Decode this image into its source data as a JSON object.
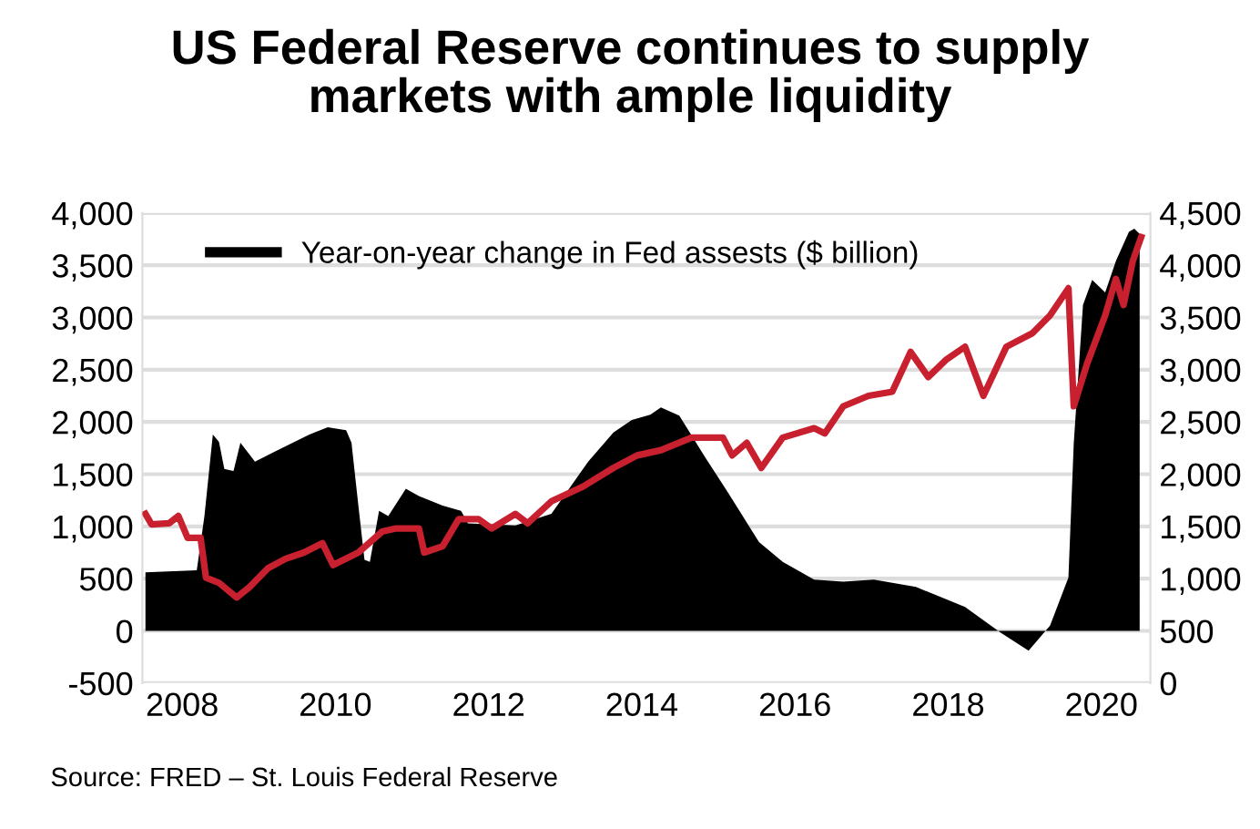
{
  "chart_data": {
    "type": "area",
    "title": "US Federal Reserve continues to supply\nmarkets with ample liquidity",
    "annotations": [
      "Source: FRED – St. Louis Federal Reserve"
    ],
    "xlim": [
      2007.48,
      2020.64
    ],
    "xticks": [
      2008,
      2010,
      2012,
      2014,
      2016,
      2018,
      2020
    ],
    "ylim": [
      -500,
      4000
    ],
    "yticks": [
      {
        "value": -500,
        "label": "-500"
      },
      {
        "value": 0,
        "label": "0"
      },
      {
        "value": 500,
        "label": "500"
      },
      {
        "value": 1000,
        "label": "1,000"
      },
      {
        "value": 1500,
        "label": "1,500"
      },
      {
        "value": 2000,
        "label": "2,000"
      },
      {
        "value": 2500,
        "label": "2,500"
      },
      {
        "value": 3000,
        "label": "3,000"
      },
      {
        "value": 3500,
        "label": "3,500"
      },
      {
        "value": 4000,
        "label": "4,000"
      }
    ],
    "y2lim": [
      0,
      4500
    ],
    "y2ticks": [
      0,
      500,
      {
        "value": 1000,
        "label": "1,000"
      },
      {
        "value": 1500,
        "label": "1,500"
      },
      {
        "value": 2000,
        "label": "2,000"
      },
      {
        "value": 2500,
        "label": "2,500"
      },
      {
        "value": 3000,
        "label": "3,000"
      },
      {
        "value": 3500,
        "label": "3,500"
      },
      {
        "value": 4000,
        "label": "4,000"
      },
      {
        "value": 4500,
        "label": "4,500"
      }
    ],
    "grid": "y",
    "legend": "top left",
    "series": [
      {
        "name": "Year-on-year change in Fed assests ($ billion)",
        "color": "#000000",
        "x": [
          2007.52,
          2008.19,
          2008.29,
          2008.4,
          2008.48,
          2008.55,
          2008.67,
          2008.76,
          2008.95,
          2009.19,
          2009.66,
          2009.9,
          2010.14,
          2010.21,
          2010.3,
          2010.38,
          2010.45,
          2010.57,
          2010.69,
          2010.92,
          2011.09,
          2011.4,
          2011.64,
          2011.73,
          2012.35,
          2012.82,
          2013.3,
          2013.63,
          2013.87,
          2014.11,
          2014.25,
          2014.49,
          2014.82,
          2015.13,
          2015.53,
          2015.84,
          2016.25,
          2016.63,
          2017.03,
          2017.58,
          2018.22,
          2018.69,
          2019.05,
          2019.33,
          2019.57,
          2019.64,
          2019.76,
          2019.88,
          2020.05,
          2020.19,
          2020.36,
          2020.43,
          2020.5
        ],
        "values": [
          560,
          580,
          1100,
          1880,
          1810,
          1550,
          1530,
          1800,
          1620,
          1710,
          1880,
          1950,
          1920,
          1800,
          1200,
          680,
          660,
          1150,
          1100,
          1360,
          1290,
          1200,
          1150,
          1030,
          1010,
          1120,
          1620,
          1900,
          2020,
          2070,
          2140,
          2060,
          1670,
          1320,
          850,
          660,
          490,
          470,
          490,
          420,
          230,
          -20,
          -190,
          50,
          510,
          1800,
          3120,
          3360,
          3240,
          3540,
          3820,
          3850,
          3800
        ]
      },
      {
        "type": "line",
        "axis": "y2",
        "color": "#c8202f",
        "x": [
          2007.52,
          2007.6,
          2007.83,
          2007.95,
          2008.07,
          2008.24,
          2008.31,
          2008.48,
          2008.71,
          2008.88,
          2009.12,
          2009.35,
          2009.59,
          2009.83,
          2009.97,
          2010.3,
          2010.61,
          2010.78,
          2011.09,
          2011.16,
          2011.4,
          2011.61,
          2011.87,
          2012.04,
          2012.35,
          2012.51,
          2012.82,
          2013.23,
          2013.63,
          2013.94,
          2014.25,
          2014.65,
          2015.06,
          2015.18,
          2015.37,
          2015.56,
          2015.84,
          2016.25,
          2016.39,
          2016.63,
          2016.96,
          2017.27,
          2017.51,
          2017.74,
          2017.98,
          2018.22,
          2018.46,
          2018.76,
          2019.1,
          2019.33,
          2019.57,
          2019.64,
          2019.81,
          2020.05,
          2020.19,
          2020.29,
          2020.41,
          2020.52
        ],
        "values": [
          1620,
          1520,
          1530,
          1600,
          1390,
          1390,
          1010,
          960,
          820,
          920,
          1100,
          1190,
          1250,
          1340,
          1130,
          1250,
          1450,
          1480,
          1480,
          1250,
          1310,
          1570,
          1570,
          1480,
          1620,
          1530,
          1740,
          1880,
          2060,
          2180,
          2230,
          2350,
          2350,
          2180,
          2300,
          2060,
          2350,
          2440,
          2390,
          2650,
          2750,
          2790,
          3170,
          2930,
          3100,
          3220,
          2750,
          3220,
          3350,
          3520,
          3780,
          2650,
          3050,
          3520,
          3870,
          3620,
          4040,
          4270
        ]
      }
    ]
  }
}
